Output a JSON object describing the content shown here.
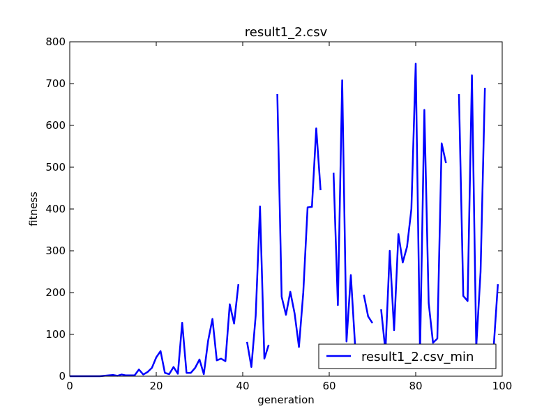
{
  "chart_data": {
    "type": "line",
    "title": "result1_2.csv",
    "xlabel": "generation",
    "ylabel": "fitness",
    "xlim": [
      0,
      100
    ],
    "ylim": [
      0,
      800
    ],
    "xticks": [
      0,
      20,
      40,
      60,
      80,
      100
    ],
    "yticks": [
      0,
      100,
      200,
      300,
      400,
      500,
      600,
      700,
      800
    ],
    "grid": false,
    "legend_position": "lower-right",
    "series": [
      {
        "name": "result1_2.csv_min",
        "color": "#0000ff",
        "x": [
          0,
          1,
          2,
          3,
          4,
          5,
          6,
          7,
          8,
          9,
          10,
          11,
          12,
          13,
          14,
          15,
          16,
          17,
          18,
          19,
          20,
          21,
          22,
          23,
          24,
          25,
          26,
          27,
          28,
          29,
          30,
          31,
          32,
          33,
          34,
          35,
          36,
          37,
          38,
          39,
          40,
          41,
          42,
          43,
          44,
          45,
          46,
          47,
          48,
          49,
          50,
          51,
          52,
          53,
          54,
          55,
          56,
          57,
          58,
          59,
          60,
          61,
          62,
          63,
          64,
          65,
          66,
          67,
          68,
          69,
          70,
          71,
          72,
          73,
          74,
          75,
          76,
          77,
          78,
          79,
          80,
          81,
          82,
          83,
          84,
          85,
          86,
          87,
          88,
          89,
          90,
          91,
          92,
          93,
          94,
          95,
          96,
          97,
          98,
          99
        ],
        "values": [
          0,
          0,
          0,
          0,
          0,
          0,
          0,
          0,
          1,
          2,
          3,
          1,
          4,
          2,
          2,
          2,
          16,
          4,
          10,
          20,
          45,
          60,
          8,
          5,
          22,
          6,
          128,
          8,
          8,
          20,
          40,
          5,
          85,
          137,
          38,
          42,
          36,
          172,
          126,
          220,
          null,
          82,
          22,
          145,
          406,
          42,
          75,
          null,
          675,
          190,
          147,
          202,
          150,
          70,
          200,
          404,
          405,
          593,
          445,
          null,
          null,
          487,
          170,
          708,
          83,
          242,
          70,
          null,
          195,
          143,
          127,
          null,
          160,
          60,
          300,
          110,
          340,
          272,
          310,
          400,
          748,
          55,
          637,
          175,
          80,
          90,
          557,
          510,
          null,
          null,
          675,
          192,
          180,
          720,
          70,
          250,
          690,
          null,
          65,
          220
        ]
      }
    ]
  }
}
